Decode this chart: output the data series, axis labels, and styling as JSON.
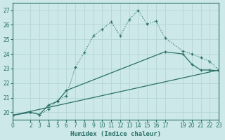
{
  "xlabel": "Humidex (Indice chaleur)",
  "bg_color": "#cce8e8",
  "grid_color": "#b8d8d8",
  "line_color": "#2a7068",
  "xlim": [
    0,
    23
  ],
  "ylim": [
    19.5,
    27.5
  ],
  "yticks": [
    20,
    21,
    22,
    23,
    24,
    25,
    26,
    27
  ],
  "xticks": [
    0,
    2,
    3,
    4,
    5,
    6,
    7,
    8,
    9,
    10,
    11,
    12,
    13,
    14,
    15,
    16,
    17,
    19,
    20,
    21,
    22,
    23
  ],
  "line1_x": [
    0,
    2,
    3,
    4,
    5,
    6,
    7,
    8,
    9,
    10,
    11,
    12,
    13,
    14,
    15,
    16,
    17,
    19,
    20,
    21,
    22,
    23
  ],
  "line1_y": [
    19.8,
    20.0,
    19.85,
    20.2,
    20.8,
    21.15,
    23.1,
    24.1,
    25.25,
    25.7,
    26.2,
    25.25,
    26.35,
    27.0,
    26.05,
    26.25,
    25.1,
    24.2,
    24.0,
    23.75,
    23.5,
    22.9
  ],
  "line2_x": [
    0,
    2,
    3,
    4,
    5,
    6,
    17,
    19,
    20,
    21,
    22,
    23
  ],
  "line2_y": [
    19.8,
    20.0,
    19.85,
    20.5,
    20.75,
    21.5,
    24.15,
    24.0,
    23.3,
    22.9,
    22.9,
    22.85
  ],
  "line3_x": [
    0,
    23
  ],
  "line3_y": [
    19.8,
    22.9
  ]
}
